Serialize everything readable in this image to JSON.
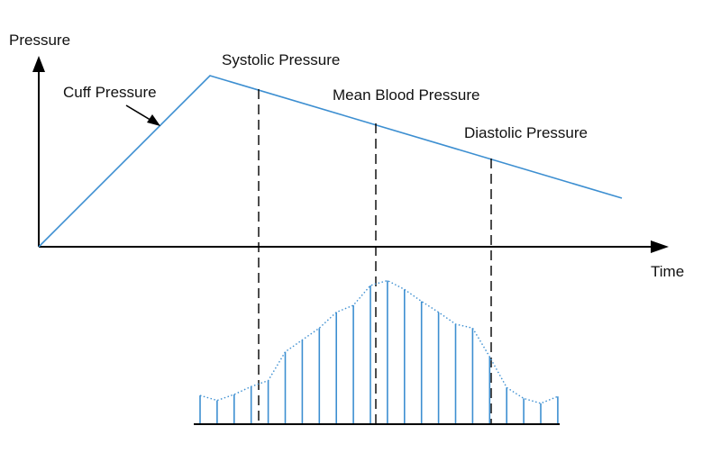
{
  "diagram": {
    "y_axis_label": "Pressure",
    "x_axis_label": "Time",
    "cuff_label": "Cuff Pressure",
    "systolic_label": "Systolic Pressure",
    "mean_label": "Mean Blood Pressure",
    "diastolic_label": "Diastolic Pressure",
    "colors": {
      "curve": "#3d8fd1",
      "axis": "#000000",
      "text": "#111111"
    },
    "oscillation_relative_amplitudes": [
      0.29,
      0.24,
      0.3,
      0.38,
      0.44,
      0.73,
      0.85,
      0.97,
      1.13,
      1.2,
      1.4,
      1.45,
      1.36,
      1.24,
      1.13,
      1.01,
      0.97,
      0.68,
      0.37,
      0.26,
      0.21,
      0.28
    ]
  }
}
